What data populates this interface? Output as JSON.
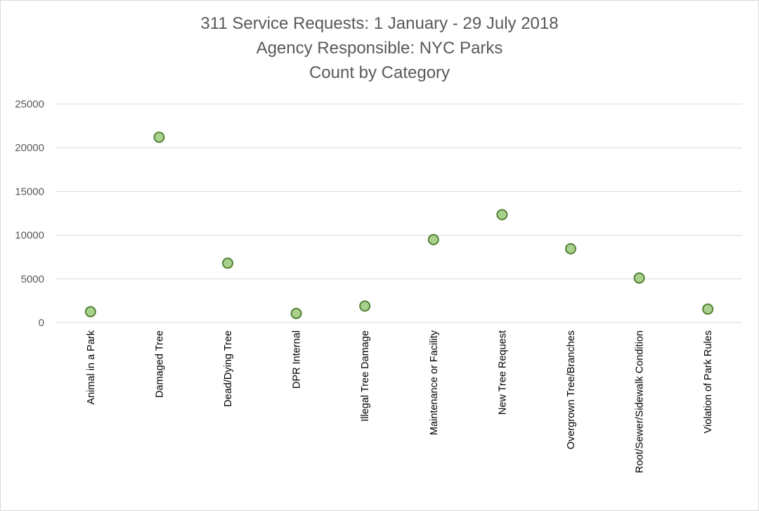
{
  "chart_data": {
    "type": "scatter",
    "title_lines": [
      "311 Service Requests: 1 January - 29 July 2018",
      "Agency Responsible:  NYC Parks",
      "Count by Category"
    ],
    "xlabel": "",
    "ylabel": "",
    "categories": [
      "Animal in a Park",
      "Damaged Tree",
      "Dead/Dying Tree",
      "DPR Internal",
      "Illegal Tree Damage",
      "Maintenance or Facility",
      "New Tree Request",
      "Overgrown Tree/Branches",
      "Root/Sewer/Sidewalk Condition",
      "Violation of Park Rules"
    ],
    "values": [
      1250,
      21200,
      6800,
      1050,
      1900,
      9500,
      12350,
      8450,
      5100,
      1550
    ],
    "ylim": [
      0,
      25000
    ],
    "yticks": [
      "0",
      "5000",
      "10000",
      "15000",
      "20000",
      "25000"
    ],
    "grid": true,
    "legend": "none",
    "colors": {
      "marker_fill": "#a9d18e",
      "marker_stroke": "#548235",
      "gridline": "#d9d9d9",
      "axis_text": "#595959"
    }
  }
}
